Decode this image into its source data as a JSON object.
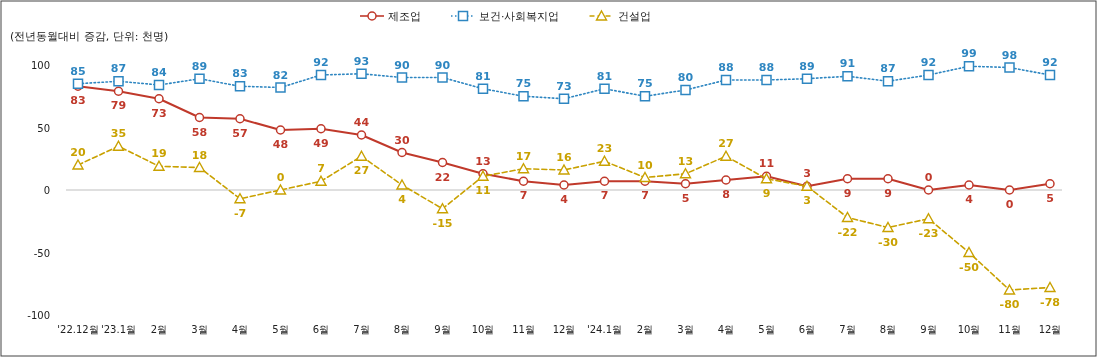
{
  "chart_data": {
    "type": "line",
    "annotations": [
      "(전년동월대비 증감, 단위: 천명)"
    ],
    "categories": [
      "'22.12월",
      "'23.1월",
      "2월",
      "3월",
      "4월",
      "5월",
      "6월",
      "7월",
      "8월",
      "9월",
      "10월",
      "11월",
      "12월",
      "'24.1월",
      "2월",
      "3월",
      "4월",
      "5월",
      "6월",
      "7월",
      "8월",
      "9월",
      "10월",
      "11월",
      "12월"
    ],
    "series": [
      {
        "name": "제조업",
        "color": "#c0392b",
        "marker": "circle",
        "line_style": "solid",
        "values": [
          83,
          79,
          73,
          58,
          57,
          48,
          49,
          44,
          30,
          22,
          13,
          7,
          4,
          7,
          7,
          5,
          8,
          11,
          3,
          9,
          9,
          0,
          4,
          0,
          5
        ]
      },
      {
        "name": "보건·사회복지업",
        "color": "#2e86c1",
        "marker": "square",
        "line_style": "dotted",
        "values": [
          85,
          87,
          84,
          89,
          83,
          82,
          92,
          93,
          90,
          90,
          81,
          75,
          73,
          81,
          75,
          80,
          88,
          88,
          89,
          91,
          87,
          92,
          99,
          98,
          92
        ]
      },
      {
        "name": "건설업",
        "color": "#c9a100",
        "marker": "triangle",
        "line_style": "dashed",
        "values": [
          20,
          35,
          19,
          18,
          -7,
          0,
          7,
          27,
          4,
          -15,
          11,
          17,
          16,
          23,
          10,
          13,
          27,
          9,
          3,
          -22,
          -30,
          -23,
          -50,
          -80,
          -78
        ]
      }
    ],
    "ylim": [
      -100,
      100
    ],
    "yticks": [
      -100,
      -50,
      0,
      50,
      100
    ],
    "ref_lines": [
      {
        "axis": "y",
        "value": 0,
        "color": "#bfbfbf"
      }
    ],
    "data_labels": true,
    "legend": "top",
    "grid": false
  }
}
